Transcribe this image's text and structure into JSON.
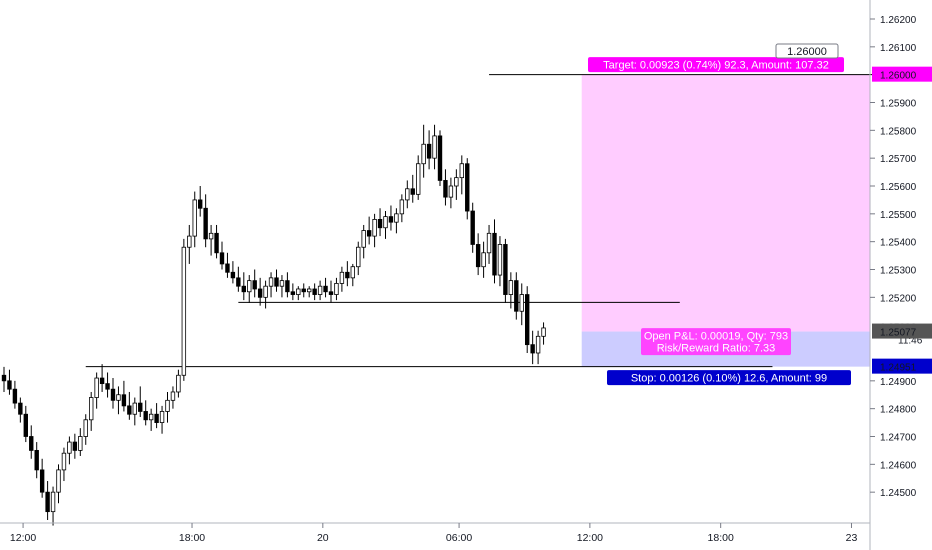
{
  "chart_data": {
    "type": "candlestick",
    "x_ticks": [
      "12:00",
      "18:00",
      "20",
      "06:00",
      "12:00",
      "18:00",
      "23"
    ],
    "y_ticks": [
      "1.26200",
      "1.26100",
      "1.26000",
      "1.25900",
      "1.25800",
      "1.25700",
      "1.25600",
      "1.25500",
      "1.25400",
      "1.25300",
      "1.25200",
      "1.25096",
      "1.25077",
      "1.24951",
      "1.24900",
      "1.24800",
      "1.24700",
      "1.24600",
      "1.24500",
      "1.24400"
    ],
    "y_tick_values": [
      1.262,
      1.261,
      1.26,
      1.259,
      1.258,
      1.257,
      1.256,
      1.255,
      1.254,
      1.253,
      1.252,
      1.249,
      1.248,
      1.247,
      1.246,
      1.245,
      1.244
    ],
    "ylim": [
      1.2436,
      1.2628
    ],
    "candles": [
      [
        1.2492,
        1.2495,
        1.2486,
        1.249
      ],
      [
        1.249,
        1.2494,
        1.2485,
        1.2487
      ],
      [
        1.2487,
        1.249,
        1.248,
        1.2482
      ],
      [
        1.2482,
        1.2484,
        1.2475,
        1.2478
      ],
      [
        1.2478,
        1.2481,
        1.2468,
        1.247
      ],
      [
        1.247,
        1.2474,
        1.2462,
        1.2465
      ],
      [
        1.2465,
        1.2468,
        1.2455,
        1.2458
      ],
      [
        1.2458,
        1.2462,
        1.2448,
        1.245
      ],
      [
        1.245,
        1.2454,
        1.244,
        1.2443
      ],
      [
        1.2443,
        1.2452,
        1.2438,
        1.245
      ],
      [
        1.245,
        1.246,
        1.2446,
        1.2458
      ],
      [
        1.2458,
        1.2466,
        1.2454,
        1.2464
      ],
      [
        1.2464,
        1.247,
        1.246,
        1.2468
      ],
      [
        1.2468,
        1.2471,
        1.2462,
        1.2465
      ],
      [
        1.2465,
        1.2473,
        1.2463,
        1.247
      ],
      [
        1.247,
        1.2478,
        1.2467,
        1.2476
      ],
      [
        1.2476,
        1.2486,
        1.2472,
        1.2484
      ],
      [
        1.2484,
        1.2493,
        1.248,
        1.2491
      ],
      [
        1.2491,
        1.2496,
        1.2486,
        1.2489
      ],
      [
        1.2489,
        1.2493,
        1.2484,
        1.2487
      ],
      [
        1.2487,
        1.2491,
        1.248,
        1.2483
      ],
      [
        1.2483,
        1.2488,
        1.2478,
        1.2485
      ],
      [
        1.2485,
        1.249,
        1.2479,
        1.2481
      ],
      [
        1.2481,
        1.2486,
        1.2476,
        1.2478
      ],
      [
        1.2478,
        1.2484,
        1.2474,
        1.2482
      ],
      [
        1.2482,
        1.2488,
        1.2477,
        1.2479
      ],
      [
        1.2479,
        1.2483,
        1.2474,
        1.2476
      ],
      [
        1.2476,
        1.248,
        1.2472,
        1.2478
      ],
      [
        1.2478,
        1.2482,
        1.2473,
        1.2475
      ],
      [
        1.2475,
        1.2481,
        1.2471,
        1.2479
      ],
      [
        1.2479,
        1.2486,
        1.2475,
        1.2483
      ],
      [
        1.2483,
        1.2488,
        1.248,
        1.2486
      ],
      [
        1.2486,
        1.2494,
        1.2484,
        1.2492
      ],
      [
        1.2492,
        1.2541,
        1.249,
        1.2538
      ],
      [
        1.2538,
        1.2546,
        1.2532,
        1.2542
      ],
      [
        1.2542,
        1.2558,
        1.2538,
        1.2555
      ],
      [
        1.2555,
        1.256,
        1.2549,
        1.2552
      ],
      [
        1.2552,
        1.2557,
        1.2538,
        1.2541
      ],
      [
        1.2541,
        1.2546,
        1.2535,
        1.2543
      ],
      [
        1.2543,
        1.2546,
        1.2534,
        1.2536
      ],
      [
        1.2536,
        1.254,
        1.253,
        1.2532
      ],
      [
        1.2532,
        1.2536,
        1.2527,
        1.2529
      ],
      [
        1.2529,
        1.2533,
        1.2525,
        1.2527
      ],
      [
        1.2527,
        1.2531,
        1.2522,
        1.2524
      ],
      [
        1.2524,
        1.2529,
        1.2519,
        1.2522
      ],
      [
        1.2522,
        1.2528,
        1.2518,
        1.2526
      ],
      [
        1.2526,
        1.253,
        1.252,
        1.2523
      ],
      [
        1.2523,
        1.2527,
        1.2517,
        1.252
      ],
      [
        1.252,
        1.2526,
        1.2516,
        1.2524
      ],
      [
        1.2524,
        1.2529,
        1.252,
        1.2527
      ],
      [
        1.2527,
        1.253,
        1.2522,
        1.2524
      ],
      [
        1.2524,
        1.2528,
        1.252,
        1.2526
      ],
      [
        1.2526,
        1.2529,
        1.252,
        1.2522
      ],
      [
        1.2522,
        1.2525,
        1.2519,
        1.2521
      ],
      [
        1.2521,
        1.2524,
        1.2519,
        1.2523
      ],
      [
        1.2523,
        1.2525,
        1.252,
        1.2522
      ],
      [
        1.2522,
        1.2524,
        1.252,
        1.2523
      ],
      [
        1.2523,
        1.2525,
        1.2519,
        1.2521
      ],
      [
        1.2521,
        1.2526,
        1.2519,
        1.2524
      ],
      [
        1.2524,
        1.2527,
        1.252,
        1.2522
      ],
      [
        1.2522,
        1.2526,
        1.2518,
        1.2521
      ],
      [
        1.2521,
        1.2527,
        1.2519,
        1.2525
      ],
      [
        1.2525,
        1.2531,
        1.2522,
        1.2529
      ],
      [
        1.2529,
        1.2533,
        1.2524,
        1.2527
      ],
      [
        1.2527,
        1.2532,
        1.2524,
        1.2531
      ],
      [
        1.2531,
        1.254,
        1.2528,
        1.2538
      ],
      [
        1.2538,
        1.2546,
        1.2534,
        1.2544
      ],
      [
        1.2544,
        1.2549,
        1.2539,
        1.2542
      ],
      [
        1.2542,
        1.255,
        1.2538,
        1.2548
      ],
      [
        1.2548,
        1.2552,
        1.2542,
        1.2545
      ],
      [
        1.2545,
        1.2551,
        1.2541,
        1.2549
      ],
      [
        1.2549,
        1.2553,
        1.2544,
        1.2547
      ],
      [
        1.2547,
        1.2552,
        1.2543,
        1.255
      ],
      [
        1.255,
        1.2557,
        1.2547,
        1.2555
      ],
      [
        1.2555,
        1.2562,
        1.2552,
        1.2559
      ],
      [
        1.2559,
        1.2564,
        1.2554,
        1.2557
      ],
      [
        1.2557,
        1.2571,
        1.2555,
        1.2568
      ],
      [
        1.2568,
        1.2582,
        1.2563,
        1.2575
      ],
      [
        1.2575,
        1.258,
        1.2566,
        1.257
      ],
      [
        1.257,
        1.2582,
        1.2566,
        1.2578
      ],
      [
        1.2578,
        1.258,
        1.256,
        1.2562
      ],
      [
        1.2562,
        1.2566,
        1.2553,
        1.2556
      ],
      [
        1.2556,
        1.2563,
        1.2552,
        1.256
      ],
      [
        1.256,
        1.2566,
        1.2555,
        1.2563
      ],
      [
        1.2563,
        1.2571,
        1.2557,
        1.2568
      ],
      [
        1.2568,
        1.257,
        1.2548,
        1.2551
      ],
      [
        1.2551,
        1.2554,
        1.2536,
        1.2539
      ],
      [
        1.2539,
        1.2543,
        1.2528,
        1.2531
      ],
      [
        1.2531,
        1.254,
        1.2527,
        1.2536
      ],
      [
        1.2536,
        1.2546,
        1.2532,
        1.2543
      ],
      [
        1.2543,
        1.2548,
        1.2525,
        1.2528
      ],
      [
        1.2528,
        1.2542,
        1.2524,
        1.2539
      ],
      [
        1.2539,
        1.2541,
        1.2518,
        1.2521
      ],
      [
        1.2521,
        1.2529,
        1.2516,
        1.2526
      ],
      [
        1.2526,
        1.2529,
        1.2512,
        1.2515
      ],
      [
        1.2515,
        1.2525,
        1.251,
        1.2521
      ],
      [
        1.2521,
        1.2524,
        1.25,
        1.2503
      ],
      [
        1.2503,
        1.2508,
        1.2496,
        1.25
      ],
      [
        1.25,
        1.2508,
        1.2496,
        1.2506
      ],
      [
        1.2506,
        1.2511,
        1.2503,
        1.2509
      ]
    ],
    "x_tick_candle": [
      3.5,
      34.5,
      58.5,
      83.5,
      107.5,
      131.5,
      155.5
    ],
    "support_line_1": {
      "value": 1.24951,
      "from_candle": 15,
      "to_candle": 141
    },
    "support_line_2": {
      "value": 1.25182,
      "from_candle": 43,
      "to_candle": 124
    },
    "target_line": {
      "value": 1.26,
      "from_candle": 89,
      "to_candle": 160
    },
    "position": {
      "type": "long",
      "entry": 1.25077,
      "target": 1.26,
      "stop": 1.24951,
      "from_candle": 106,
      "to_candle": 159,
      "target_label": "Target: 0.00923 (0.74%) 92.3, Amount: 107.32",
      "stop_label": "Stop: 0.00126 (0.10%) 12.6, Amount: 99",
      "center_label_1": "Open P&L: 0.00019, Qty: 793",
      "center_label_2": "Risk/Reward Ratio: 7.33",
      "target_marker": "1.26000",
      "profit_color": "#ffccff",
      "loss_color": "#ccccff",
      "target_label_color": "#ff00ff",
      "stop_label_color": "#0000cc",
      "center_label_color": "#ff44ff"
    },
    "price_axis": {
      "last_price": "1.25096",
      "countdown": "11:46",
      "current_price": "1.25077",
      "target_price": "1.26000",
      "stop_price": "1.24951"
    },
    "colors": {
      "candle_up": "#ffffff",
      "candle_down": "#000000",
      "candle_border": "#000000",
      "background": "#ffffff",
      "axis_text": "#131722",
      "current_price_bg": "#555555",
      "target_price_bg": "#ff00ff",
      "stop_price_bg": "#0000cc"
    },
    "grid": false
  }
}
